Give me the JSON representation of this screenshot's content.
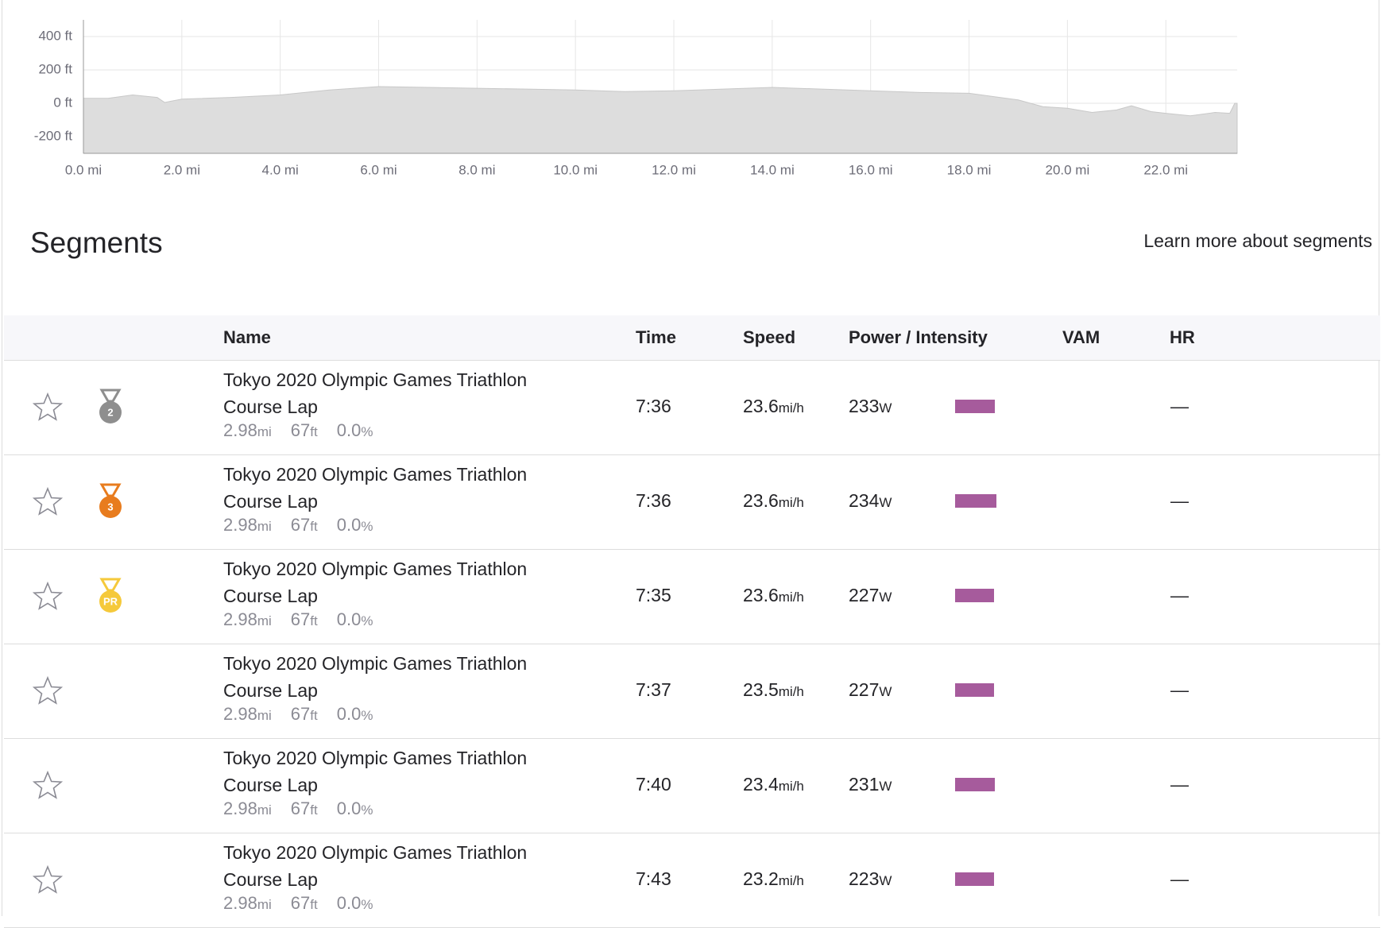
{
  "chart_data": {
    "type": "area",
    "color": "#dddddd",
    "x": [
      0,
      0.5,
      1.0,
      1.5,
      1.65,
      2.0,
      3.0,
      4.0,
      5.0,
      6.0,
      7.0,
      8.0,
      9.0,
      10.0,
      11.0,
      12.0,
      13.0,
      14.0,
      15.0,
      16.0,
      17.0,
      18.0,
      19.0,
      19.5,
      20.0,
      20.5,
      21.0,
      21.3,
      21.7,
      22.0,
      22.5,
      23.0,
      23.3,
      23.4,
      23.45
    ],
    "y": [
      30,
      30,
      50,
      35,
      5,
      25,
      35,
      50,
      80,
      100,
      95,
      90,
      85,
      80,
      70,
      75,
      85,
      95,
      85,
      75,
      65,
      60,
      20,
      -20,
      -30,
      -55,
      -40,
      -15,
      -50,
      -60,
      -75,
      -55,
      -60,
      0,
      0
    ],
    "xlim": [
      0,
      23.45
    ],
    "ylim": [
      -300,
      500
    ],
    "xticks": [
      {
        "value": 0,
        "label": "0.0 mi"
      },
      {
        "value": 2,
        "label": "2.0 mi"
      },
      {
        "value": 4,
        "label": "4.0 mi"
      },
      {
        "value": 6,
        "label": "6.0 mi"
      },
      {
        "value": 8,
        "label": "8.0 mi"
      },
      {
        "value": 10,
        "label": "10.0 mi"
      },
      {
        "value": 12,
        "label": "12.0 mi"
      },
      {
        "value": 14,
        "label": "14.0 mi"
      },
      {
        "value": 16,
        "label": "16.0 mi"
      },
      {
        "value": 18,
        "label": "18.0 mi"
      },
      {
        "value": 20,
        "label": "20.0 mi"
      },
      {
        "value": 22,
        "label": "22.0 mi"
      }
    ],
    "yticks": [
      {
        "value": -200,
        "label": "-200 ft"
      },
      {
        "value": 0,
        "label": "0 ft"
      },
      {
        "value": 200,
        "label": "200 ft"
      },
      {
        "value": 400,
        "label": "400 ft"
      }
    ],
    "grid": true
  },
  "section": {
    "title": "Segments",
    "link": "Learn more about segments"
  },
  "table": {
    "headers": [
      "Name",
      "Time",
      "Speed",
      "Power / Intensity",
      "VAM",
      "HR"
    ],
    "units": {
      "distance": "mi",
      "elevation": "ft",
      "grade": "%",
      "speed": "mi/h",
      "power": "W"
    },
    "rows": [
      {
        "medal": "2",
        "name": "Tokyo 2020 Olympic Games Triathlon Course Lap",
        "distance": "2.98",
        "elevation": "67",
        "grade": "0.0",
        "time": "7:36",
        "speed": "23.6",
        "power": "233",
        "intensity": 100,
        "hr": "—"
      },
      {
        "medal": "3",
        "name": "Tokyo 2020 Olympic Games Triathlon Course Lap",
        "distance": "2.98",
        "elevation": "67",
        "grade": "0.0",
        "time": "7:36",
        "speed": "23.6",
        "power": "234",
        "intensity": 104,
        "hr": "—"
      },
      {
        "medal": "PR",
        "name": "Tokyo 2020 Olympic Games Triathlon Course Lap",
        "distance": "2.98",
        "elevation": "67",
        "grade": "0.0",
        "time": "7:35",
        "speed": "23.6",
        "power": "227",
        "intensity": 97,
        "hr": "—"
      },
      {
        "medal": null,
        "name": "Tokyo 2020 Olympic Games Triathlon Course Lap",
        "distance": "2.98",
        "elevation": "67",
        "grade": "0.0",
        "time": "7:37",
        "speed": "23.5",
        "power": "227",
        "intensity": 97,
        "hr": "—"
      },
      {
        "medal": null,
        "name": "Tokyo 2020 Olympic Games Triathlon Course Lap",
        "distance": "2.98",
        "elevation": "67",
        "grade": "0.0",
        "time": "7:40",
        "speed": "23.4",
        "power": "231",
        "intensity": 100,
        "hr": "—"
      },
      {
        "medal": null,
        "name": "Tokyo 2020 Olympic Games Triathlon Course Lap",
        "distance": "2.98",
        "elevation": "67",
        "grade": "0.0",
        "time": "7:43",
        "speed": "23.2",
        "power": "223",
        "intensity": 97,
        "hr": "—"
      }
    ]
  }
}
